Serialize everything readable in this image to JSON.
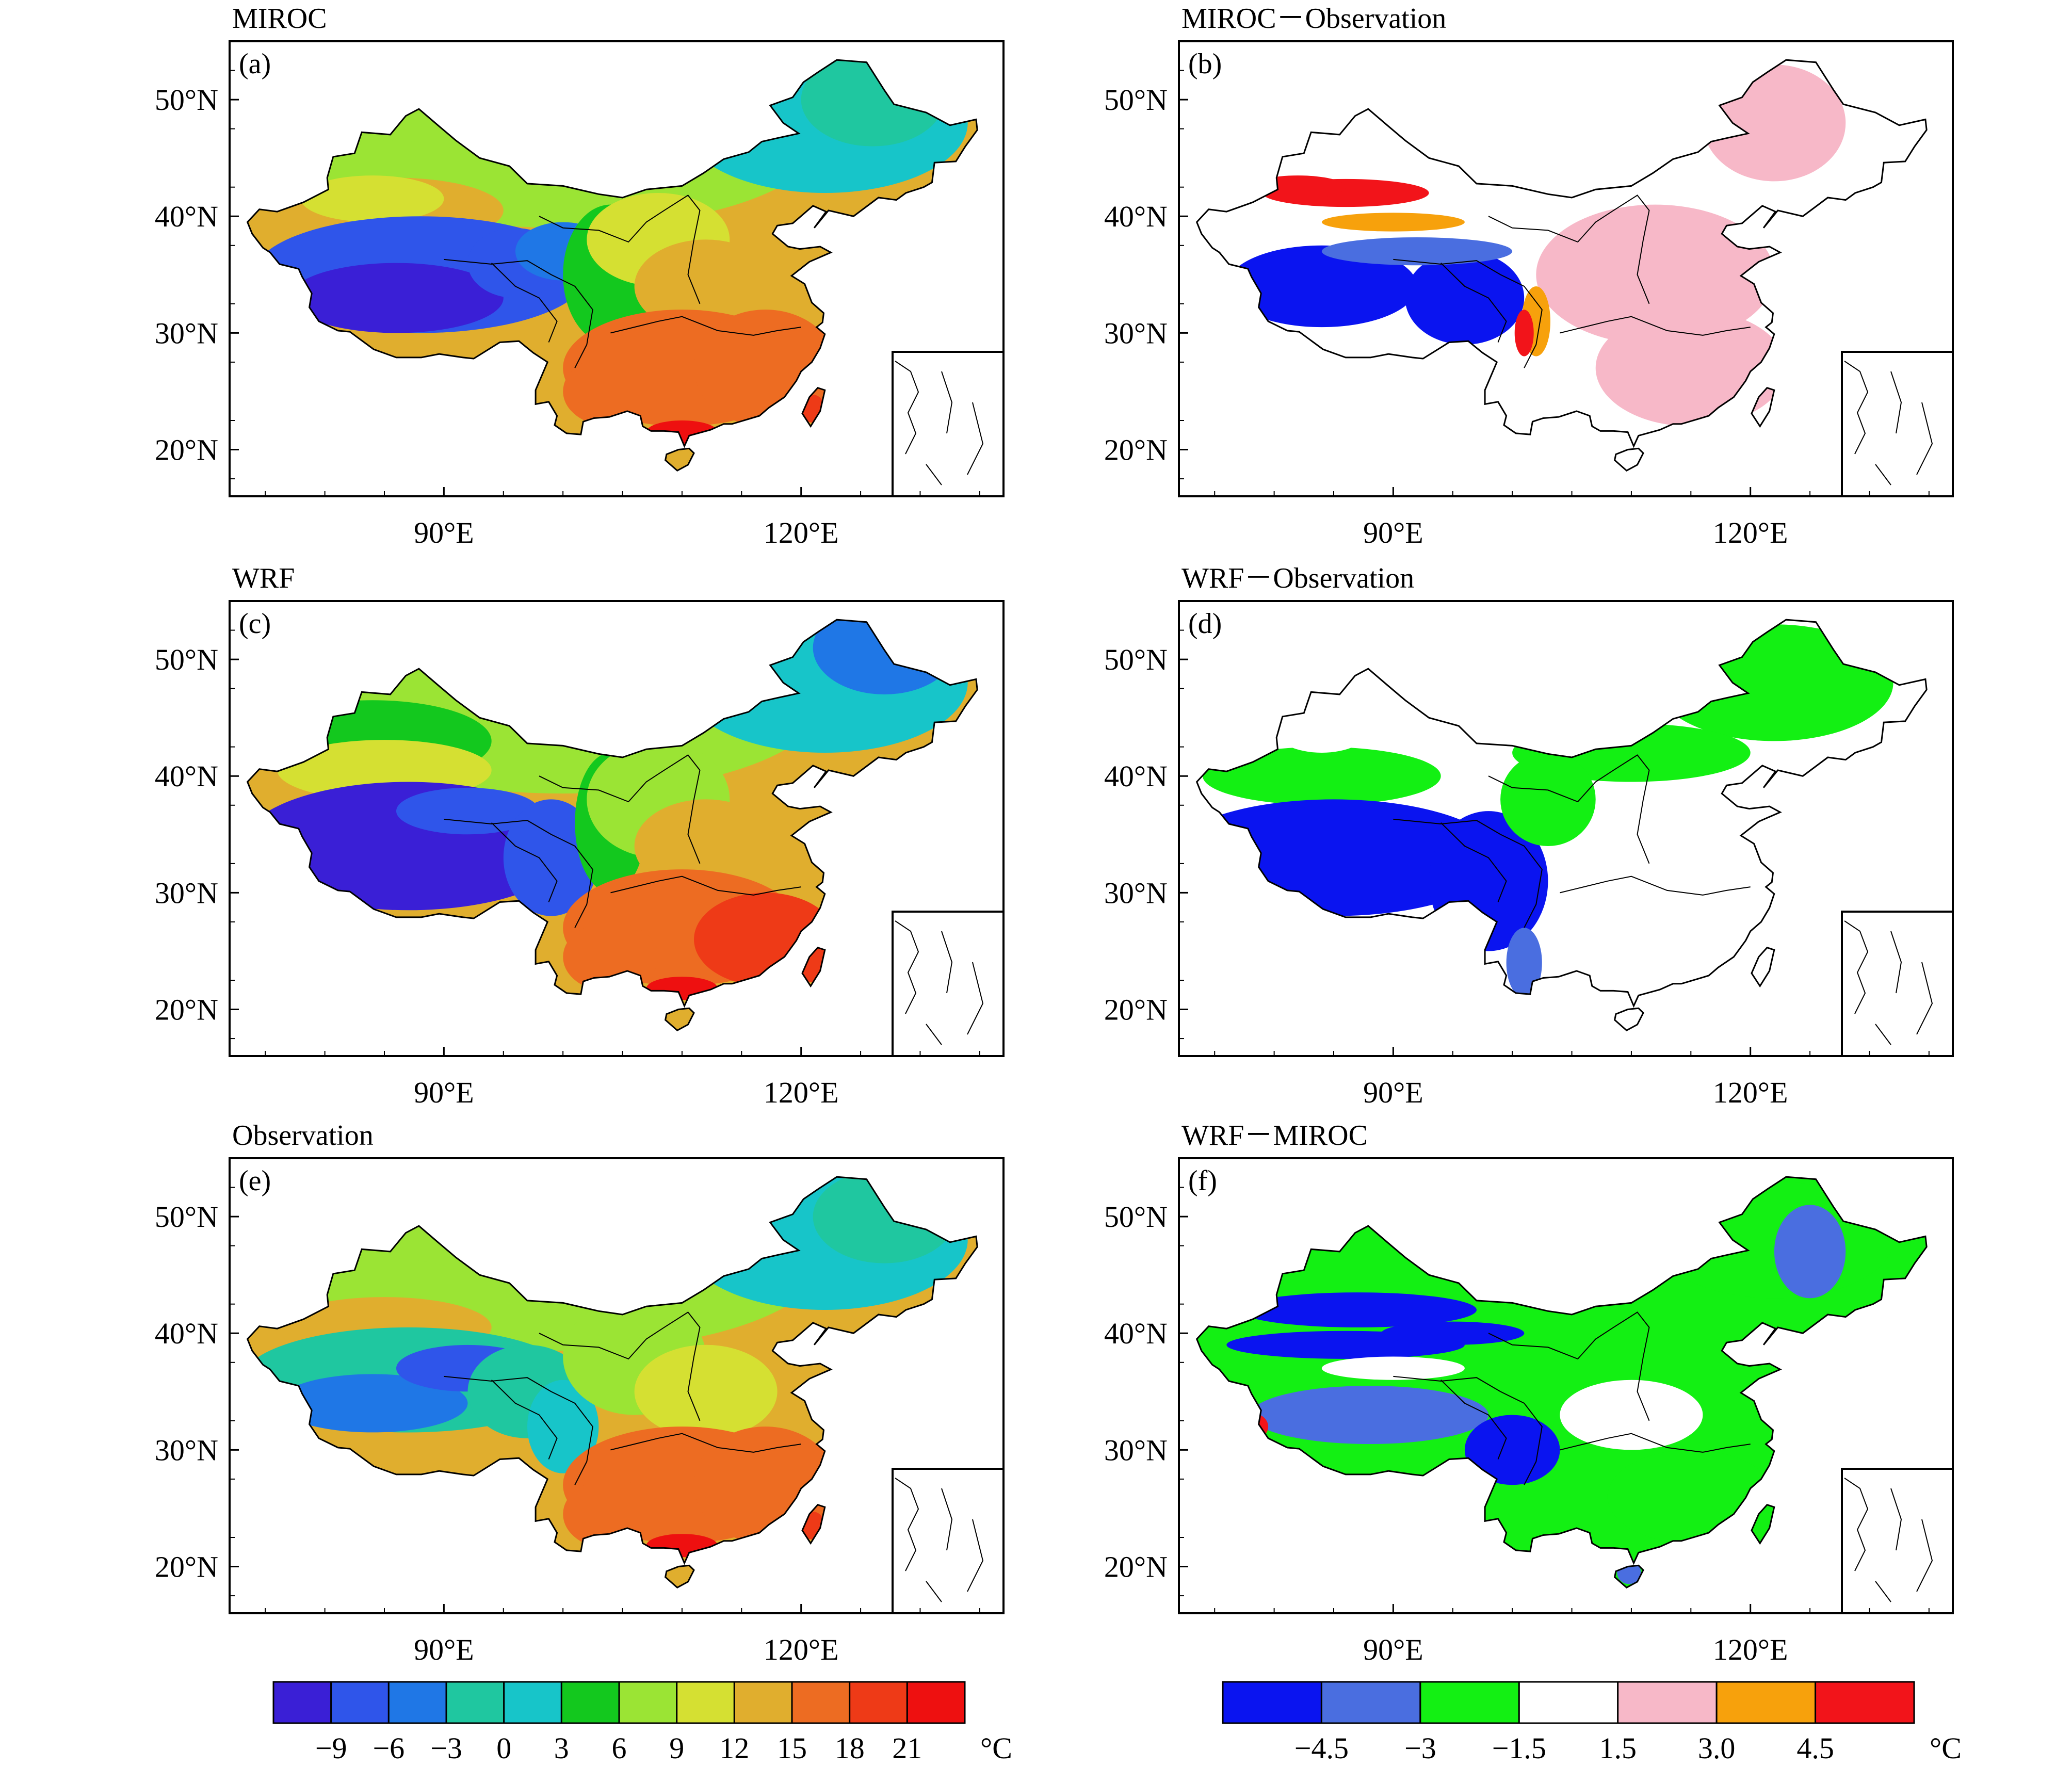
{
  "panels": [
    {
      "id": "a",
      "title": "MIROC",
      "label": "(a)",
      "kind": "absolute",
      "scheme": "miroc"
    },
    {
      "id": "b",
      "title": "MIROC－Observation",
      "label": "(b)",
      "kind": "diff",
      "scheme": "miroc_obs"
    },
    {
      "id": "c",
      "title": "WRF",
      "label": "(c)",
      "kind": "absolute",
      "scheme": "wrf"
    },
    {
      "id": "d",
      "title": "WRF－Observation",
      "label": "(d)",
      "kind": "diff",
      "scheme": "wrf_obs"
    },
    {
      "id": "e",
      "title": "Observation",
      "label": "(e)",
      "kind": "absolute",
      "scheme": "obs"
    },
    {
      "id": "f",
      "title": "WRF－MIROC",
      "label": "(f)",
      "kind": "diff",
      "scheme": "wrf_miroc"
    }
  ],
  "axes": {
    "lat_labels": [
      "50°N",
      "40°N",
      "30°N",
      "20°N"
    ],
    "lat_values": [
      50,
      40,
      30,
      20
    ],
    "lon_labels": [
      "90°E",
      "120°E"
    ],
    "lon_values": [
      90,
      120
    ],
    "lon_range": [
      72,
      137
    ],
    "lat_range": [
      16,
      55
    ]
  },
  "colorbars": {
    "absolute": {
      "colors": [
        "#3a1fd6",
        "#2f55ea",
        "#1f77e6",
        "#1fc7a0",
        "#17c5c9",
        "#13c81e",
        "#9be434",
        "#d5e032",
        "#e0ae2e",
        "#ed6c22",
        "#ee3a17",
        "#ee1010"
      ],
      "labels": [
        "−9",
        "−6",
        "−3",
        "0",
        "3",
        "6",
        "9",
        "12",
        "15",
        "18",
        "21"
      ],
      "unit": "°C"
    },
    "diff": {
      "colors": [
        "#0a14f0",
        "#4a6ee0",
        "#13f013",
        "#ffffff",
        "#f7b8c8",
        "#f7a10c",
        "#f2141a"
      ],
      "labels": [
        "−4.5",
        "−3",
        "−1.5",
        "1.5",
        "3.0",
        "4.5"
      ],
      "unit": "°C"
    }
  }
}
